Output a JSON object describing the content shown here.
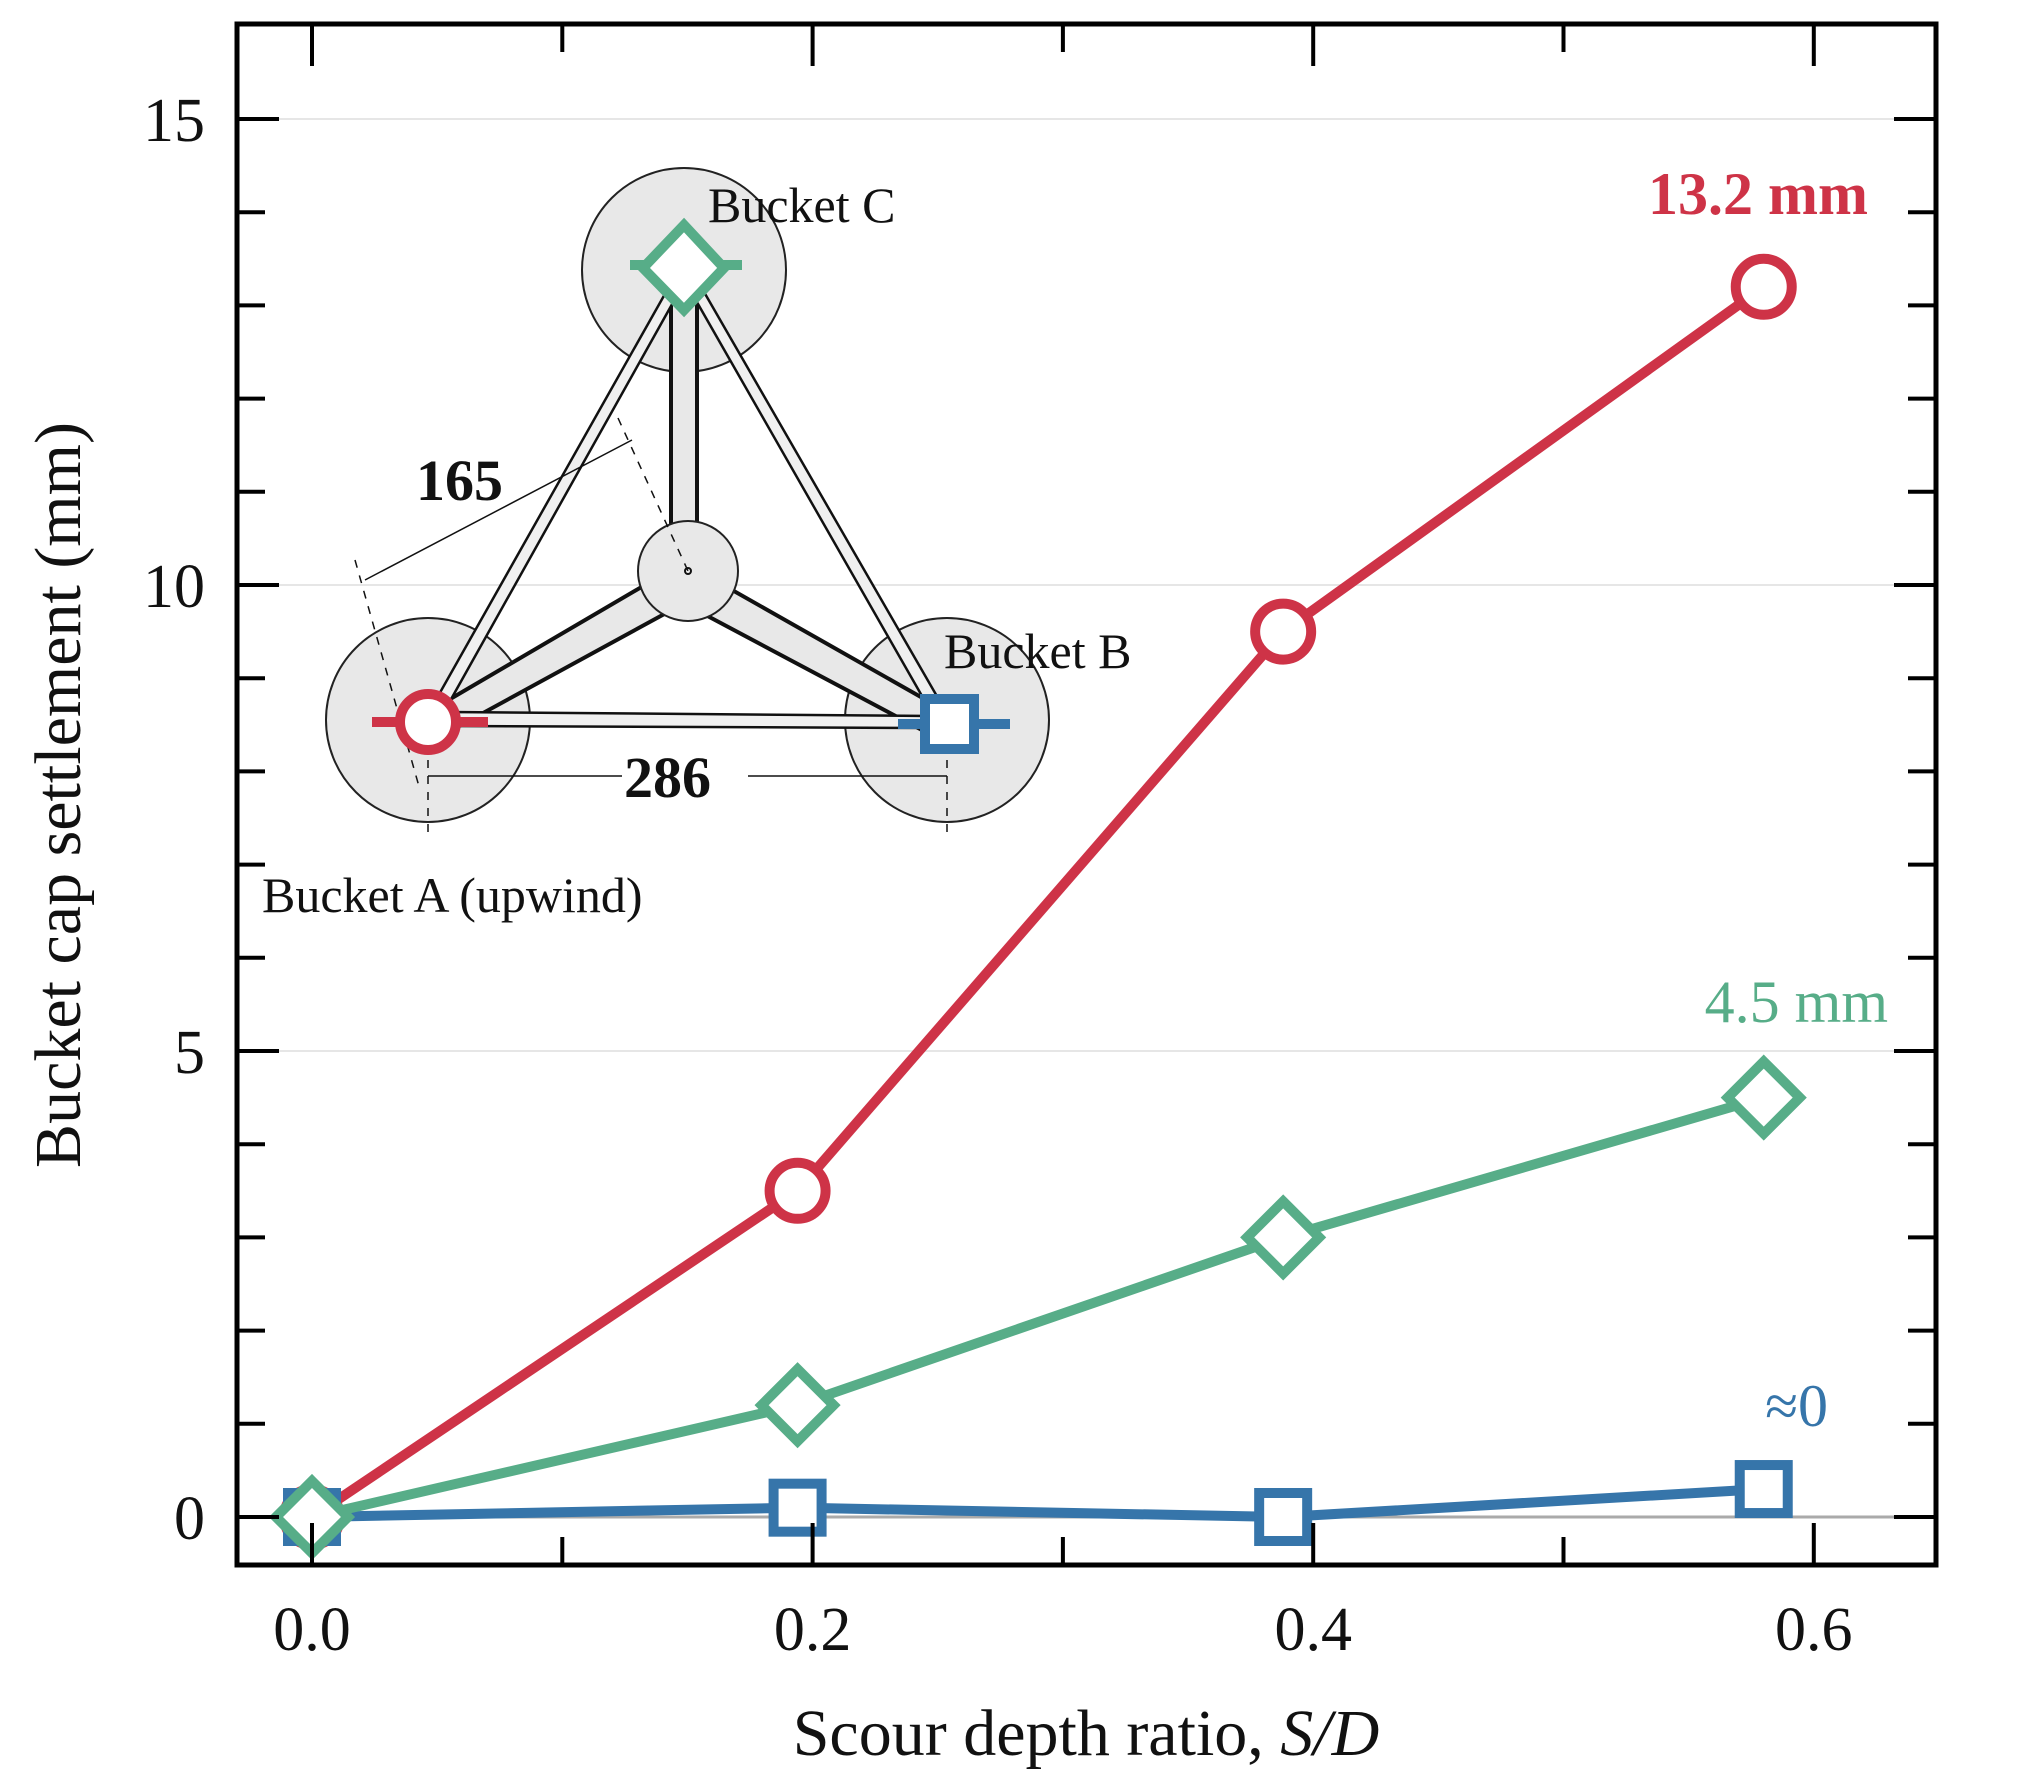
{
  "chart_data": {
    "type": "line",
    "title": "",
    "xlabel": "Scour depth ratio, S/D",
    "xlabel_parts": {
      "plain": "Scour depth ratio, ",
      "italic": "S/D"
    },
    "ylabel": "Bucket cap settlement (mm)",
    "xlim": [
      -0.035,
      0.645
    ],
    "ylim": [
      -0.5,
      16
    ],
    "x_ticks": [
      0.0,
      0.2,
      0.4,
      0.6
    ],
    "x_tick_labels": [
      "0.0",
      "0.2",
      "0.4",
      "0.6"
    ],
    "x_minor_step": 0.1,
    "y_ticks": [
      0,
      5,
      10,
      15
    ],
    "y_tick_labels": [
      "0",
      "5",
      "10",
      "15"
    ],
    "y_minor_step": 1,
    "grid": "horizontal at major y ticks",
    "zero_line": true,
    "x": [
      0.0,
      0.194,
      0.388,
      0.58
    ],
    "series": [
      {
        "name": "Bucket A (upwind)",
        "marker": "circle",
        "color": "#CE3347",
        "values": [
          0.0,
          3.5,
          9.5,
          13.2
        ]
      },
      {
        "name": "Bucket C",
        "marker": "diamond",
        "color": "#57AD88",
        "values": [
          0.0,
          1.2,
          3.0,
          4.5
        ]
      },
      {
        "name": "Bucket B",
        "marker": "square",
        "color": "#3675AA",
        "values": [
          0.0,
          0.1,
          0.0,
          0.3
        ]
      }
    ],
    "annotations": [
      {
        "text": "13.2 mm",
        "color": "#CE3347",
        "bold": true,
        "near_series": "Bucket A (upwind)"
      },
      {
        "text": "4.5 mm",
        "color": "#57AD88",
        "bold": false,
        "near_series": "Bucket C"
      },
      {
        "text": "≈0",
        "color": "#3675AA",
        "bold": false,
        "near_series": "Bucket B"
      }
    ],
    "legend": "inset schematic (top-left)"
  },
  "inset": {
    "labels": {
      "bucket_c": "Bucket C",
      "bucket_b": "Bucket B",
      "bucket_a": "Bucket A (upwind)"
    },
    "dimensions": {
      "side": "165",
      "base": "286"
    }
  }
}
